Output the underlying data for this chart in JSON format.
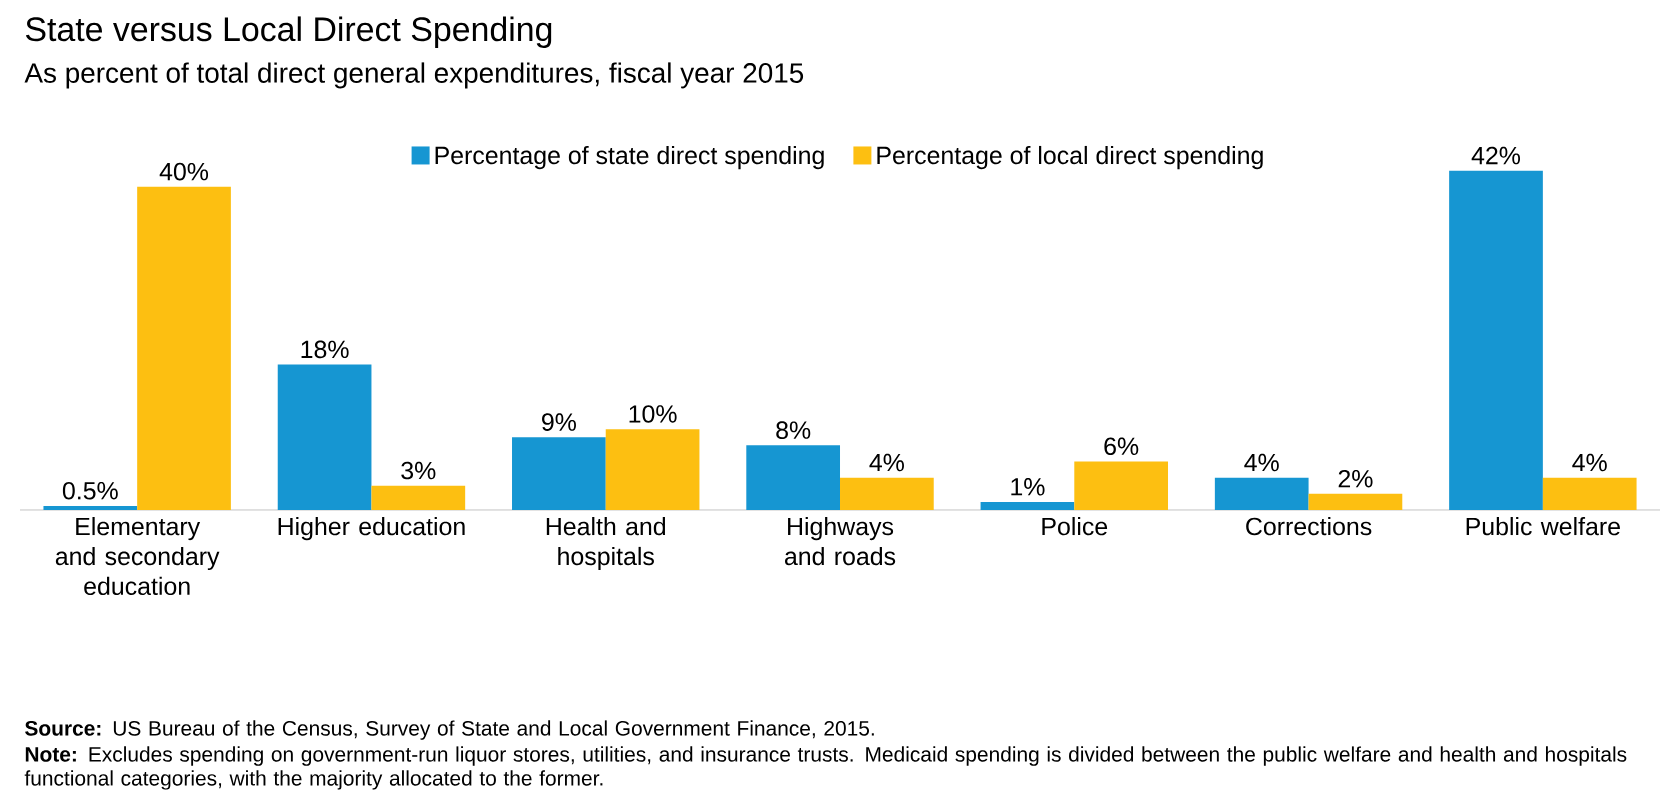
{
  "chart_data": {
    "type": "bar",
    "title": "State versus Local Direct Spending",
    "subtitle": "As percent of total direct general expenditures, fiscal year 2015",
    "categories": [
      "Elementary and secondary education",
      "Higher education",
      "Health and hospitals",
      "Highways and roads",
      "Police",
      "Corrections",
      "Public welfare"
    ],
    "series": [
      {
        "name": "Percentage of state direct spending",
        "color": "#1696d2",
        "values": [
          0.5,
          18,
          9,
          8,
          1,
          4,
          42
        ],
        "value_labels": [
          "0.5%",
          "18%",
          "9%",
          "8%",
          "1%",
          "4%",
          "42%"
        ]
      },
      {
        "name": "Percentage of local direct spending",
        "color": "#fdbf11",
        "values": [
          40,
          3,
          10,
          4,
          6,
          2,
          4
        ],
        "value_labels": [
          "40%",
          "3%",
          "10%",
          "4%",
          "6%",
          "2%",
          "4%"
        ]
      }
    ],
    "legend": "top",
    "tick_labels": "x",
    "annotations": [
      "**Source:** US Bureau of the Census, Survey of State and Local Government Finance, 2015.",
      "**Note:** Excludes spending on government-run liquor stores, utilities, and insurance trusts. Medicaid spending is divided between the public welfare and health and hospitals functional categories, with the majority allocated to the former."
    ]
  }
}
